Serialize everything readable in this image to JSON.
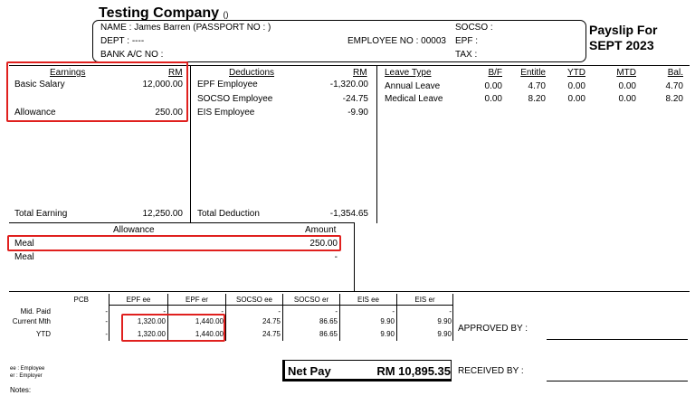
{
  "header": {
    "company_name": "Testing Company",
    "company_suffix": "()",
    "name_line": "NAME : James Barren (PASSPORT NO : )",
    "dept_line": "DEPT : ----",
    "bank_line": "BANK A/C NO :",
    "employee_no_line": "EMPLOYEE NO : 00003",
    "socso_line": "SOCSO :",
    "epf_line": "EPF :",
    "tax_line": "TAX :",
    "payslip_title_1": "Payslip For",
    "payslip_title_2": "SEPT 2023"
  },
  "earnings": {
    "header": "Earnings",
    "currency": "RM",
    "items": [
      {
        "label": "Basic Salary",
        "amount": "12,000.00"
      },
      {
        "label": "Allowance",
        "amount": "250.00"
      }
    ],
    "total_label": "Total Earning",
    "total_amount": "12,250.00"
  },
  "deductions": {
    "header": "Deductions",
    "currency": "RM",
    "items": [
      {
        "label": "EPF Employee",
        "amount": "-1,320.00"
      },
      {
        "label": "SOCSO Employee",
        "amount": "-24.75"
      },
      {
        "label": "EIS Employee",
        "amount": "-9.90"
      }
    ],
    "total_label": "Total Deduction",
    "total_amount": "-1,354.65"
  },
  "leave": {
    "headers": [
      "Leave Type",
      "B/F",
      "Entitle",
      "YTD",
      "MTD",
      "Bal."
    ],
    "rows": [
      [
        "Annual Leave",
        "0.00",
        "4.70",
        "0.00",
        "0.00",
        "4.70"
      ],
      [
        "Medical Leave",
        "0.00",
        "8.20",
        "0.00",
        "0.00",
        "8.20"
      ]
    ]
  },
  "allowance": {
    "header_label": "Allowance",
    "header_amount": "Amount",
    "rows": [
      {
        "label": "Meal",
        "amount": "250.00"
      },
      {
        "label": "Meal",
        "amount": "-"
      }
    ]
  },
  "statutory": {
    "headers": [
      "PCB",
      "EPF ee",
      "EPF er",
      "SOCSO ee",
      "SOCSO er",
      "EIS ee",
      "EIS er"
    ],
    "rows": [
      {
        "label": "Mid. Paid",
        "values": [
          "-",
          "-",
          "-",
          "-",
          "-",
          "-",
          "-"
        ]
      },
      {
        "label": "Current Mth",
        "values": [
          "-",
          "1,320.00",
          "1,440.00",
          "24.75",
          "86.65",
          "9.90",
          "9.90"
        ]
      },
      {
        "label": "YTD",
        "values": [
          "-",
          "1,320.00",
          "1,440.00",
          "24.75",
          "86.65",
          "9.90",
          "9.90"
        ]
      }
    ]
  },
  "legend": {
    "ee": "ee : Employee",
    "er": "er : Employer"
  },
  "net_pay": {
    "label": "Net Pay",
    "amount": "RM 10,895.35"
  },
  "approved_by": "APPROVED BY :",
  "received_by": "RECEIVED BY :",
  "notes": "Notes:",
  "highlight_color": "#e0201e"
}
